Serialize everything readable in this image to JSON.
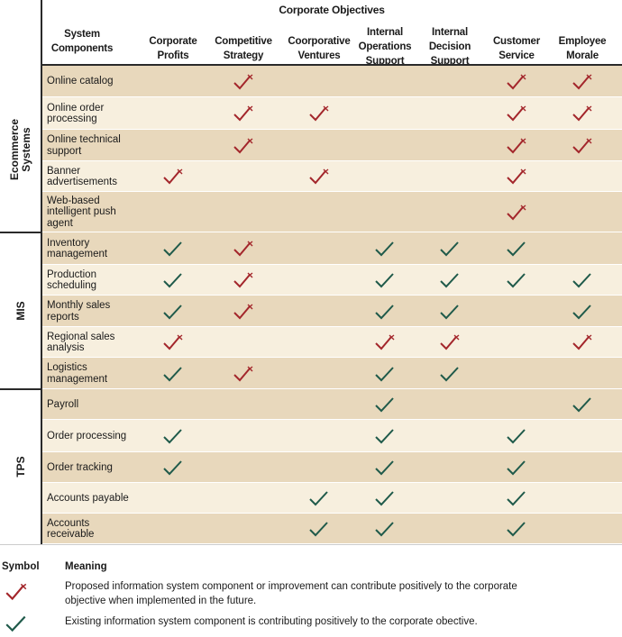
{
  "colors": {
    "band_dark": "#e8d8bc",
    "band_light": "#f7efde",
    "future_mark": "#a3262b",
    "existing_mark": "#1f5a4a"
  },
  "header": {
    "title": "Corporate Objectives",
    "component_col": "System\nComponents",
    "objectives": [
      "Corporate\nProfits",
      "Competitive\nStrategy",
      "Coorporative\nVentures",
      "Internal\nOperations\nSupport",
      "Internal\nDecision\nSupport",
      "Customer\nService",
      "Employee\nMorale"
    ]
  },
  "groups": [
    {
      "name": "Ecommerce\nSystems",
      "rows": [
        {
          "label": "Online catalog",
          "marks": [
            "",
            "future",
            "",
            "",
            "",
            "future",
            "future"
          ]
        },
        {
          "label": "Online order\nprocessing",
          "marks": [
            "",
            "future",
            "future",
            "",
            "",
            "future",
            "future"
          ]
        },
        {
          "label": "Online technical\nsupport",
          "marks": [
            "",
            "future",
            "",
            "",
            "",
            "future",
            "future"
          ]
        },
        {
          "label": "Banner\nadvertisements",
          "marks": [
            "future",
            "",
            "future",
            "",
            "",
            "future",
            ""
          ]
        },
        {
          "label": "Web-based\nintelligent push\nagent",
          "marks": [
            "",
            "",
            "",
            "",
            "",
            "future",
            ""
          ]
        }
      ]
    },
    {
      "name": "MIS",
      "rows": [
        {
          "label": "Inventory\nmanagement",
          "marks": [
            "existing",
            "future",
            "",
            "existing",
            "existing",
            "existing",
            ""
          ]
        },
        {
          "label": "Production\nscheduling",
          "marks": [
            "existing",
            "future",
            "",
            "existing",
            "existing",
            "existing",
            "existing"
          ]
        },
        {
          "label": "Monthly sales\nreports",
          "marks": [
            "existing",
            "future",
            "",
            "existing",
            "existing",
            "",
            "existing"
          ]
        },
        {
          "label": "Regional sales\nanalysis",
          "marks": [
            "future",
            "",
            "",
            "future",
            "future",
            "",
            "future"
          ]
        },
        {
          "label": "Logistics\nmanagement",
          "marks": [
            "existing",
            "future",
            "",
            "existing",
            "existing",
            "",
            ""
          ]
        }
      ]
    },
    {
      "name": "TPS",
      "rows": [
        {
          "label": "Payroll",
          "marks": [
            "",
            "",
            "",
            "existing",
            "",
            "",
            "existing"
          ]
        },
        {
          "label": "Order processing",
          "marks": [
            "existing",
            "",
            "",
            "existing",
            "",
            "existing",
            ""
          ]
        },
        {
          "label": "Order tracking",
          "marks": [
            "existing",
            "",
            "",
            "existing",
            "",
            "existing",
            ""
          ]
        },
        {
          "label": "Accounts payable",
          "marks": [
            "",
            "",
            "existing",
            "existing",
            "",
            "existing",
            ""
          ]
        },
        {
          "label": "Accounts\nreceivable",
          "marks": [
            "",
            "",
            "existing",
            "existing",
            "",
            "existing",
            ""
          ]
        }
      ]
    }
  ],
  "legend": {
    "symbol_header": "Symbol",
    "meaning_header": "Meaning",
    "future_text": "Proposed information system component or improvement can contribute positively to the corporate\nobjective when implemented in the future.",
    "existing_text": "Existing information system component is contributing positively to the corporate obective."
  }
}
